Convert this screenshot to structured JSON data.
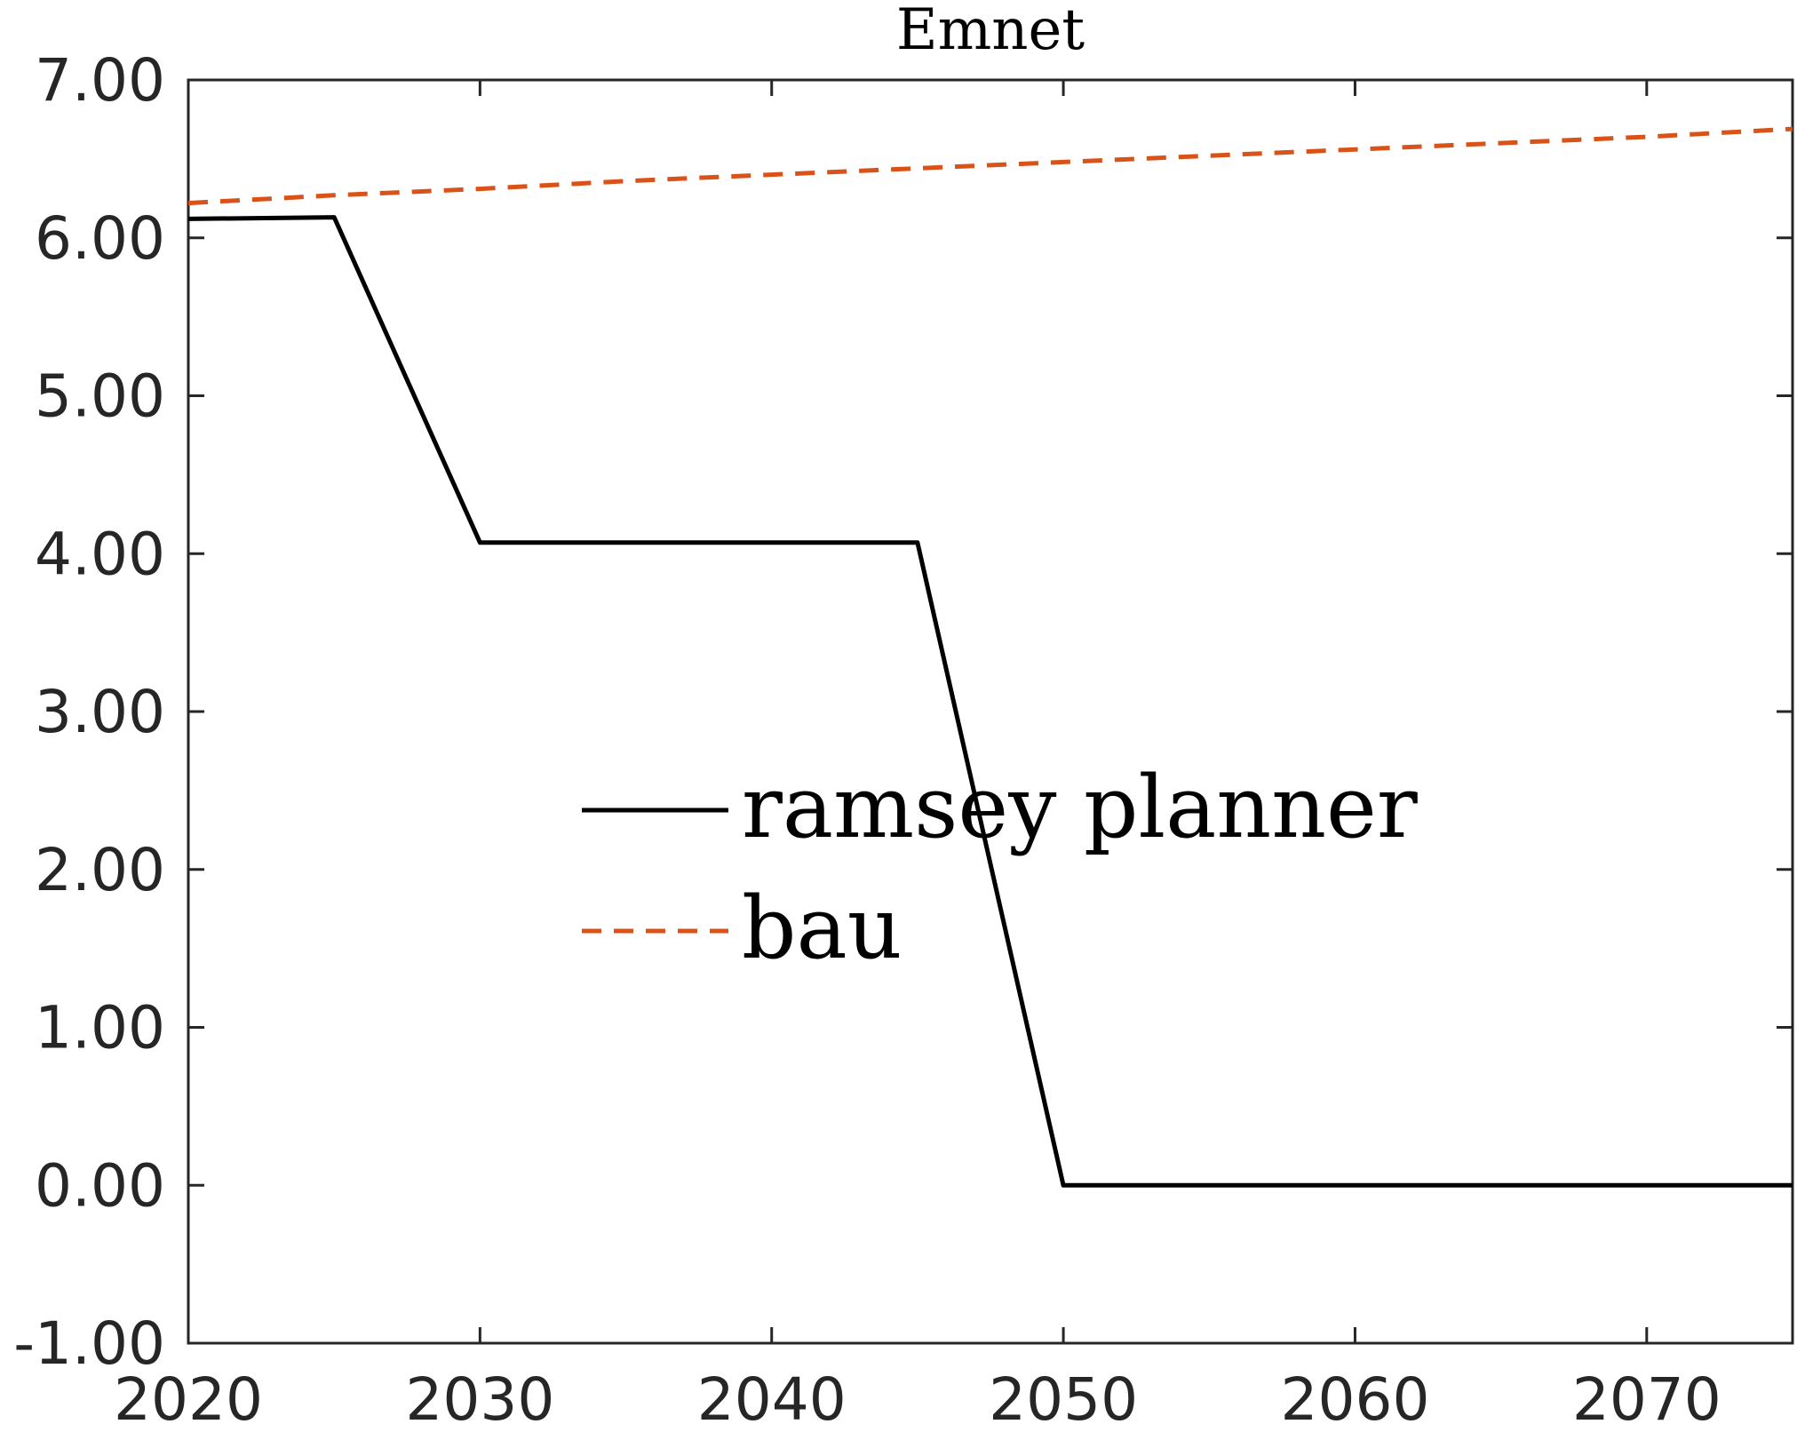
{
  "chart_data": {
    "type": "line",
    "title": "Emnet",
    "xlabel": "",
    "ylabel": "",
    "xlim": [
      2020,
      2075
    ],
    "ylim": [
      -1,
      7
    ],
    "xticks": [
      2020,
      2030,
      2040,
      2050,
      2060,
      2070
    ],
    "yticks": [
      -1,
      0,
      1,
      2,
      3,
      4,
      5,
      6,
      7
    ],
    "xtick_labels": [
      "2020",
      "2030",
      "2040",
      "2050",
      "2060",
      "2070"
    ],
    "ytick_labels": [
      "-1.00",
      "0.00",
      "1.00",
      "2.00",
      "3.00",
      "4.00",
      "5.00",
      "6.00",
      "7.00"
    ],
    "grid": false,
    "legend": {
      "placement": "center"
    },
    "series": [
      {
        "name": "ramsey planner",
        "style": "solid",
        "color": "#000000",
        "x": [
          2020,
          2025,
          2030,
          2035,
          2040,
          2045,
          2050,
          2055,
          2060,
          2065,
          2070,
          2075
        ],
        "y": [
          6.12,
          6.13,
          4.07,
          4.07,
          4.07,
          4.07,
          0.0,
          0.0,
          0.0,
          0.0,
          0.0,
          0.0
        ]
      },
      {
        "name": "bau",
        "style": "dashed",
        "color": "#d95319",
        "x": [
          2020,
          2025,
          2030,
          2035,
          2040,
          2045,
          2050,
          2055,
          2060,
          2065,
          2070,
          2075
        ],
        "y": [
          6.22,
          6.27,
          6.31,
          6.36,
          6.4,
          6.44,
          6.48,
          6.52,
          6.56,
          6.6,
          6.64,
          6.69
        ]
      }
    ]
  }
}
